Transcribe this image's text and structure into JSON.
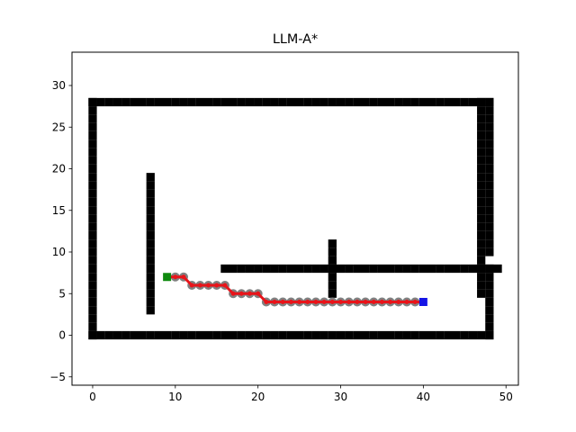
{
  "chart_data": {
    "type": "scatter",
    "title": "LLM-A*",
    "xlabel": "",
    "ylabel": "",
    "xlim": [
      -2.5,
      51.5
    ],
    "ylim": [
      -6,
      34
    ],
    "xticks": [
      0,
      10,
      20,
      30,
      40,
      50
    ],
    "yticks": [
      -5,
      0,
      5,
      10,
      15,
      20,
      25,
      30
    ],
    "grid": false,
    "legend": "none",
    "colors": {
      "obstacle": "#000000",
      "visited": "#808080",
      "path": "#e8141a",
      "start": "#0f8a0f",
      "goal": "#1414e6"
    },
    "obstacle_segments": [
      {
        "from": [
          0,
          0
        ],
        "to": [
          48,
          0
        ]
      },
      {
        "from": [
          0,
          28
        ],
        "to": [
          48,
          28
        ]
      },
      {
        "from": [
          0,
          0
        ],
        "to": [
          0,
          28
        ]
      },
      {
        "from": [
          48,
          0
        ],
        "to": [
          48,
          8
        ]
      },
      {
        "from": [
          47,
          5
        ],
        "to": [
          47,
          28
        ]
      },
      {
        "from": [
          48,
          10
        ],
        "to": [
          48,
          28
        ]
      },
      {
        "from": [
          7,
          3
        ],
        "to": [
          7,
          19
        ]
      },
      {
        "from": [
          16,
          8
        ],
        "to": [
          49,
          8
        ]
      },
      {
        "from": [
          29,
          5
        ],
        "to": [
          29,
          11
        ]
      }
    ],
    "visited": [
      [
        10,
        7
      ],
      [
        11,
        7
      ],
      [
        12,
        6
      ],
      [
        13,
        6
      ],
      [
        14,
        6
      ],
      [
        15,
        6
      ],
      [
        16,
        6
      ],
      [
        17,
        5
      ],
      [
        18,
        5
      ],
      [
        19,
        5
      ],
      [
        20,
        5
      ],
      [
        21,
        4
      ],
      [
        22,
        4
      ],
      [
        23,
        4
      ],
      [
        24,
        4
      ],
      [
        25,
        4
      ],
      [
        26,
        4
      ],
      [
        27,
        4
      ],
      [
        28,
        4
      ],
      [
        29,
        4
      ],
      [
        30,
        4
      ],
      [
        31,
        4
      ],
      [
        32,
        4
      ],
      [
        33,
        4
      ],
      [
        34,
        4
      ],
      [
        35,
        4
      ],
      [
        36,
        4
      ],
      [
        37,
        4
      ],
      [
        38,
        4
      ],
      [
        39,
        4
      ]
    ],
    "path": [
      [
        9,
        7
      ],
      [
        10,
        7
      ],
      [
        11,
        7
      ],
      [
        12,
        6
      ],
      [
        13,
        6
      ],
      [
        14,
        6
      ],
      [
        15,
        6
      ],
      [
        16,
        6
      ],
      [
        17,
        5
      ],
      [
        18,
        5
      ],
      [
        19,
        5
      ],
      [
        20,
        5
      ],
      [
        21,
        4
      ],
      [
        22,
        4
      ],
      [
        23,
        4
      ],
      [
        24,
        4
      ],
      [
        25,
        4
      ],
      [
        26,
        4
      ],
      [
        27,
        4
      ],
      [
        28,
        4
      ],
      [
        29,
        4
      ],
      [
        30,
        4
      ],
      [
        31,
        4
      ],
      [
        32,
        4
      ],
      [
        33,
        4
      ],
      [
        34,
        4
      ],
      [
        35,
        4
      ],
      [
        36,
        4
      ],
      [
        37,
        4
      ],
      [
        38,
        4
      ],
      [
        39,
        4
      ],
      [
        40,
        4
      ]
    ],
    "start": [
      9,
      7
    ],
    "goal": [
      40,
      4
    ]
  }
}
